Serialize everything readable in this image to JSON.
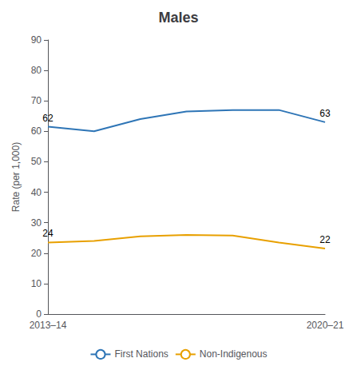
{
  "chart_data": {
    "type": "line",
    "title": "Males",
    "y_label": "Rate (per 1,000)",
    "categories": [
      "2013–14",
      null,
      null,
      null,
      null,
      null,
      "2020–21"
    ],
    "series": [
      {
        "name": "First Nations",
        "color": "#2e75b6",
        "values": [
          61.5,
          60.0,
          64.0,
          66.5,
          67.0,
          67.0,
          63.0
        ],
        "value_labels": [
          "62",
          null,
          null,
          null,
          null,
          null,
          "63"
        ]
      },
      {
        "name": "Non-Indigenous",
        "color": "#e8a000",
        "values": [
          23.5,
          24.0,
          25.5,
          26.0,
          25.8,
          23.5,
          21.5
        ],
        "value_labels": [
          "24",
          null,
          null,
          null,
          null,
          null,
          "22"
        ]
      }
    ],
    "ylim": [
      0,
      90
    ],
    "yticks": [
      0,
      10,
      20,
      30,
      40,
      50,
      60,
      70,
      80,
      90
    ],
    "grid": false,
    "legend": "bottom",
    "data_labels": true
  }
}
